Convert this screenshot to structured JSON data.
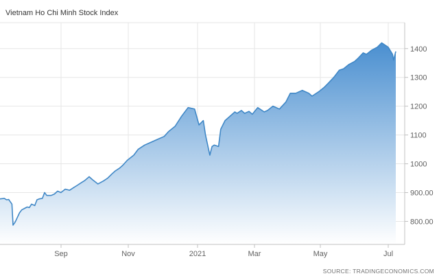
{
  "chart_data": {
    "type": "area",
    "title": "Vietnam Ho Chi Minh Stock Index",
    "source": "SOURCE: TRADINGECONOMICS.COM",
    "ylim": [
      720,
      1490
    ],
    "y_ticks": [
      {
        "value": 800,
        "label": "800.00"
      },
      {
        "value": 900,
        "label": "900.00"
      },
      {
        "value": 1000,
        "label": "1000"
      },
      {
        "value": 1100,
        "label": "1100"
      },
      {
        "value": 1200,
        "label": "1200"
      },
      {
        "value": 1300,
        "label": "1300"
      },
      {
        "value": 1400,
        "label": "1400"
      }
    ],
    "x_ticks": [
      "Sep",
      "Nov",
      "2021",
      "Mar",
      "May",
      "Jul"
    ],
    "x_start": "2020-07-16",
    "x_end": "2021-07-15",
    "grid": true,
    "colors": {
      "line": "#3f87c6",
      "fill_top": "#4a8fd0",
      "fill_bottom": "#ffffff"
    },
    "series": [
      {
        "x": [
          "2020-07-16",
          "2020-07-20",
          "2020-07-22",
          "2020-07-24",
          "2020-07-27",
          "2020-07-28",
          "2020-07-30",
          "2020-08-03",
          "2020-08-05",
          "2020-08-07",
          "2020-08-10",
          "2020-08-12",
          "2020-08-14",
          "2020-08-17",
          "2020-08-19",
          "2020-08-21",
          "2020-08-24",
          "2020-08-26",
          "2020-08-28",
          "2020-09-01",
          "2020-09-04",
          "2020-09-07",
          "2020-09-10",
          "2020-09-14",
          "2020-09-18",
          "2020-09-22",
          "2020-09-25",
          "2020-09-29",
          "2020-10-02",
          "2020-10-06",
          "2020-10-09",
          "2020-10-14",
          "2020-10-19",
          "2020-10-23",
          "2020-10-27",
          "2020-10-30",
          "2020-11-03",
          "2020-11-06",
          "2020-11-10",
          "2020-11-16",
          "2020-11-20",
          "2020-11-26",
          "2020-12-02",
          "2020-12-08",
          "2020-12-14",
          "2020-12-18",
          "2020-12-24",
          "2020-12-30",
          "2021-01-05",
          "2021-01-11",
          "2021-01-15",
          "2021-01-19",
          "2021-01-21",
          "2021-01-25",
          "2021-01-27",
          "2021-01-29",
          "2021-02-02",
          "2021-02-04",
          "2021-02-08",
          "2021-02-17",
          "2021-02-19",
          "2021-02-23",
          "2021-02-26",
          "2021-03-02",
          "2021-03-05",
          "2021-03-10",
          "2021-03-16",
          "2021-03-19",
          "2021-03-24",
          "2021-03-30",
          "2021-04-05",
          "2021-04-09",
          "2021-04-14",
          "2021-04-20",
          "2021-04-26",
          "2021-04-29",
          "2021-05-05",
          "2021-05-10",
          "2021-05-14",
          "2021-05-19",
          "2021-05-24",
          "2021-05-28",
          "2021-06-02",
          "2021-06-07",
          "2021-06-10",
          "2021-06-15",
          "2021-06-18",
          "2021-06-23",
          "2021-06-28",
          "2021-07-02",
          "2021-07-06",
          "2021-07-08",
          "2021-07-12",
          "2021-07-13",
          "2021-07-15"
        ],
        "values": [
          878,
          880,
          875,
          876,
          860,
          787,
          798,
          830,
          840,
          844,
          850,
          848,
          860,
          855,
          875,
          878,
          880,
          900,
          890,
          890,
          895,
          905,
          900,
          912,
          908,
          918,
          925,
          935,
          942,
          955,
          945,
          930,
          940,
          950,
          965,
          975,
          985,
          995,
          1012,
          1030,
          1050,
          1065,
          1075,
          1085,
          1095,
          1112,
          1130,
          1165,
          1195,
          1190,
          1135,
          1150,
          1100,
          1030,
          1060,
          1065,
          1060,
          1120,
          1150,
          1180,
          1175,
          1185,
          1175,
          1182,
          1172,
          1195,
          1180,
          1185,
          1200,
          1190,
          1215,
          1245,
          1245,
          1255,
          1245,
          1235,
          1250,
          1265,
          1280,
          1300,
          1325,
          1330,
          1345,
          1355,
          1365,
          1385,
          1380,
          1395,
          1405,
          1420,
          1410,
          1405,
          1380,
          1360,
          1390
        ]
      }
    ]
  }
}
